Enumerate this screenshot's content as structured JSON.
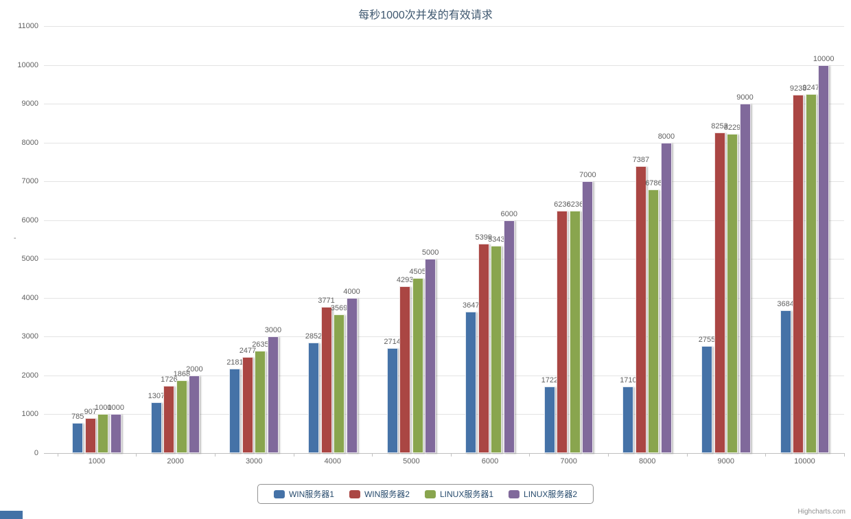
{
  "chart_data": {
    "type": "bar",
    "title": "每秒1000次并发的有效请求",
    "xlabel": "",
    "ylabel": "",
    "categories": [
      "1000",
      "2000",
      "3000",
      "4000",
      "5000",
      "6000",
      "7000",
      "8000",
      "9000",
      "10000"
    ],
    "series": [
      {
        "name": "WIN服务器1",
        "color": "#4572A7",
        "values": [
          785,
          1307,
          2181,
          2852,
          2714,
          3647,
          1722,
          1710,
          2755,
          3684
        ]
      },
      {
        "name": "WIN服务器2",
        "color": "#AA4643",
        "values": [
          907,
          1726,
          2477,
          3771,
          4293,
          5399,
          6236,
          7387,
          8253,
          9238
        ]
      },
      {
        "name": "LINUX服务器1",
        "color": "#89A54E",
        "values": [
          1000,
          1868,
          2635,
          3569,
          4505,
          5343,
          6236,
          6786,
          8229,
          9247
        ]
      },
      {
        "name": "LINUX服务器2",
        "color": "#80699B",
        "values": [
          1000,
          2000,
          3000,
          4000,
          5000,
          6000,
          7000,
          8000,
          9000,
          10000
        ]
      }
    ],
    "ylim": [
      0,
      11000
    ],
    "y_ticks": [
      0,
      1000,
      2000,
      3000,
      4000,
      5000,
      6000,
      7000,
      8000,
      9000,
      10000,
      11000
    ],
    "y_tick_interval": 1000,
    "grid": true,
    "data_labels": true,
    "legend_position": "bottom-center"
  },
  "y_axis_title_mark": "'",
  "credits": "Highcharts.com",
  "colors": {
    "title": "#3E576F",
    "axis_label": "#606060",
    "data_label": "#606060",
    "gridline": "#e3e3e3",
    "axis_line": "#c0c0c0",
    "legend_border": "#909090",
    "legend_text": "#274b6d",
    "credits": "#909090",
    "bottom_left_artifact": "#4472A6"
  }
}
